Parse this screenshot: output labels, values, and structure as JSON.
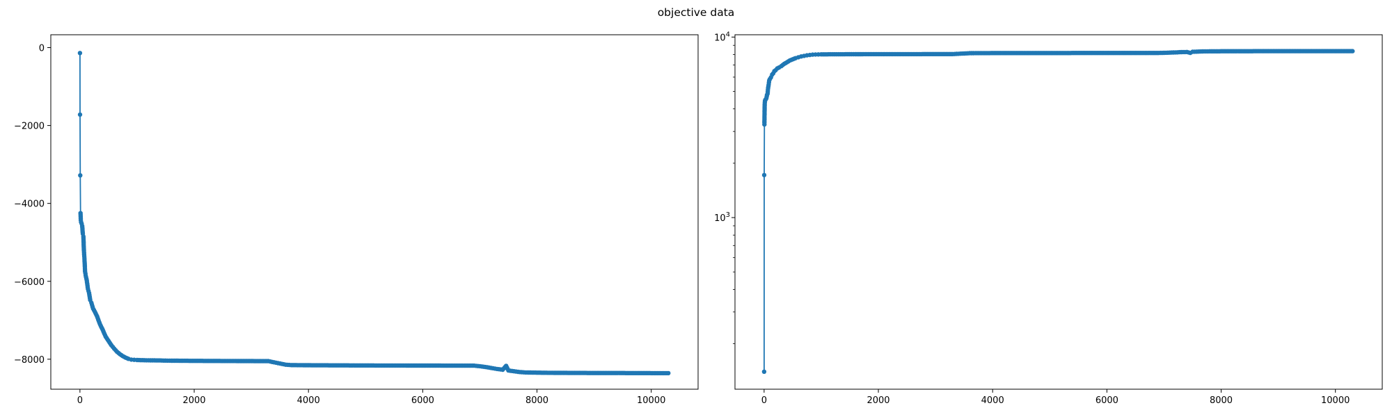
{
  "figure": {
    "title": "objective data"
  },
  "colors": {
    "series": "#1f77b4",
    "axes": "#000000",
    "background": "#ffffff"
  },
  "chart_data": [
    {
      "type": "line",
      "title": "",
      "xlabel": "",
      "ylabel": "",
      "xlim": [
        -510,
        10820
      ],
      "ylim": [
        -8770,
        330
      ],
      "xscale": "linear",
      "yscale": "linear",
      "grid": false,
      "xticks": [
        0,
        2000,
        4000,
        6000,
        8000,
        10000
      ],
      "xtick_labels": [
        "0",
        "2000",
        "4000",
        "6000",
        "8000",
        "10000"
      ],
      "yticks": [
        0,
        -2000,
        -4000,
        -6000,
        -8000
      ],
      "ytick_labels": [
        "0",
        "−2000",
        "−4000",
        "−6000",
        "−8000"
      ],
      "markers": "circle",
      "series": [
        {
          "name": "",
          "x": [
            0,
            2,
            5,
            10,
            15,
            20,
            30,
            40,
            50,
            60,
            70,
            80,
            90,
            100,
            120,
            140,
            160,
            180,
            200,
            230,
            260,
            300,
            350,
            400,
            450,
            500,
            550,
            600,
            650,
            700,
            750,
            800,
            850,
            900,
            950,
            1000,
            1100,
            1200,
            1300,
            1400,
            1500,
            1600,
            1800,
            2000,
            2500,
            3000,
            3300,
            3400,
            3500,
            3600,
            3700,
            4000,
            4500,
            5000,
            5500,
            6000,
            6500,
            6900,
            7000,
            7100,
            7200,
            7300,
            7400,
            7460,
            7500,
            7600,
            7700,
            7800,
            8000,
            8300,
            8600,
            9000,
            9500,
            10000,
            10300
          ],
          "y": [
            -140,
            -1720,
            -3280,
            -4250,
            -4430,
            -4480,
            -4520,
            -4580,
            -4780,
            -4850,
            -5220,
            -5450,
            -5750,
            -5850,
            -5980,
            -6200,
            -6300,
            -6480,
            -6550,
            -6700,
            -6780,
            -6900,
            -7100,
            -7250,
            -7420,
            -7530,
            -7640,
            -7730,
            -7810,
            -7870,
            -7920,
            -7960,
            -7990,
            -8010,
            -8015,
            -8020,
            -8025,
            -8028,
            -8030,
            -8032,
            -8035,
            -8038,
            -8040,
            -8042,
            -8045,
            -8048,
            -8050,
            -8080,
            -8110,
            -8140,
            -8150,
            -8155,
            -8158,
            -8160,
            -8162,
            -8163,
            -8165,
            -8165,
            -8180,
            -8200,
            -8225,
            -8250,
            -8270,
            -8170,
            -8290,
            -8310,
            -8330,
            -8340,
            -8345,
            -8350,
            -8352,
            -8354,
            -8355,
            -8357,
            -8358
          ]
        }
      ]
    },
    {
      "type": "line",
      "title": "",
      "xlabel": "",
      "ylabel": "",
      "xlim": [
        -510,
        10820
      ],
      "ylim": [
        112,
        10300
      ],
      "xscale": "linear",
      "yscale": "log",
      "grid": false,
      "xticks": [
        0,
        2000,
        4000,
        6000,
        8000,
        10000
      ],
      "xtick_labels": [
        "0",
        "2000",
        "4000",
        "6000",
        "8000",
        "10000"
      ],
      "yticks": [
        1000,
        10000
      ],
      "ytick_labels": [
        "10^3",
        "10^4"
      ],
      "markers": "circle",
      "series": [
        {
          "name": "",
          "x": [
            0,
            2,
            5,
            10,
            15,
            20,
            30,
            40,
            50,
            60,
            70,
            80,
            90,
            100,
            120,
            140,
            160,
            180,
            200,
            230,
            260,
            300,
            350,
            400,
            450,
            500,
            550,
            600,
            650,
            700,
            750,
            800,
            850,
            900,
            950,
            1000,
            1100,
            1200,
            1300,
            1400,
            1500,
            1600,
            1800,
            2000,
            2500,
            3000,
            3300,
            3400,
            3500,
            3600,
            3700,
            4000,
            4500,
            5000,
            5500,
            6000,
            6500,
            6900,
            7000,
            7100,
            7200,
            7300,
            7400,
            7460,
            7500,
            7600,
            7700,
            7800,
            8000,
            8300,
            8600,
            9000,
            9500,
            10000,
            10300
          ],
          "y": [
            140,
            1720,
            3280,
            4250,
            4430,
            4480,
            4520,
            4580,
            4780,
            4850,
            5220,
            5450,
            5750,
            5850,
            5980,
            6200,
            6300,
            6480,
            6550,
            6700,
            6780,
            6900,
            7100,
            7250,
            7420,
            7530,
            7640,
            7730,
            7810,
            7870,
            7920,
            7960,
            7990,
            8010,
            8015,
            8020,
            8025,
            8028,
            8030,
            8032,
            8035,
            8038,
            8040,
            8042,
            8045,
            8048,
            8050,
            8080,
            8110,
            8140,
            8150,
            8155,
            8158,
            8160,
            8162,
            8163,
            8165,
            8165,
            8180,
            8200,
            8225,
            8250,
            8270,
            8170,
            8290,
            8310,
            8330,
            8340,
            8345,
            8350,
            8352,
            8354,
            8355,
            8357,
            8358
          ]
        }
      ]
    }
  ]
}
